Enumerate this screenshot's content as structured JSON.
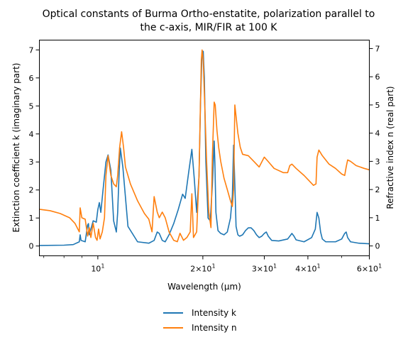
{
  "chart_data": {
    "type": "line",
    "title": "Optical constants of Burma Ortho-enstatite, polarization parallel to the c-axis, MIR/FIR at 100 K",
    "title_lines": [
      "Optical constants of Burma Ortho-enstatite, polarization parallel to",
      "the c-axis, MIR/FIR at 100 K"
    ],
    "xlabel": "Wavelength (μm)",
    "ylabel_left": "Extinction coefficient k (imaginary part)",
    "ylabel_right": "Refractive index n (real part)",
    "xscale": "log",
    "xlim": [
      6.8,
      60
    ],
    "ylim_left": [
      -0.35,
      7.35
    ],
    "ylim_right": [
      -0.35,
      7.3
    ],
    "x_major_ticks": [
      {
        "v": 10,
        "base": "10",
        "exp": "1"
      },
      {
        "v": 20,
        "base": "2×10",
        "exp": "1"
      },
      {
        "v": 30,
        "base": "3×10",
        "exp": "1"
      },
      {
        "v": 40,
        "base": "4×10",
        "exp": "1"
      },
      {
        "v": 60,
        "base": "6×10",
        "exp": "1"
      }
    ],
    "x_minor_ticks": [
      7,
      8,
      9,
      50
    ],
    "y_left_ticks": [
      "0",
      "1",
      "2",
      "3",
      "4",
      "5",
      "6",
      "7"
    ],
    "y_right_ticks": [
      "0",
      "1",
      "2",
      "3",
      "4",
      "5",
      "6",
      "7"
    ],
    "grid": false,
    "legend_position": "bottom-center",
    "series": [
      {
        "name": "Intensity k",
        "axis": "left",
        "color": "#1f77b4",
        "x": [
          6.8,
          8.0,
          8.5,
          8.85,
          8.9,
          8.95,
          9.2,
          9.35,
          9.4,
          9.45,
          9.6,
          9.7,
          9.9,
          10.0,
          10.1,
          10.2,
          10.35,
          10.45,
          10.55,
          10.7,
          10.9,
          11.1,
          11.3,
          11.4,
          11.5,
          11.6,
          11.8,
          12.2,
          13.0,
          14.0,
          14.5,
          14.8,
          15.0,
          15.3,
          15.6,
          16.0,
          16.5,
          17.0,
          17.5,
          17.8,
          18.2,
          18.6,
          18.9,
          19.2,
          19.5,
          19.7,
          19.9,
          20.05,
          20.2,
          20.4,
          20.7,
          21.0,
          21.3,
          21.55,
          21.65,
          21.8,
          22.1,
          22.5,
          23.0,
          23.5,
          24.0,
          24.3,
          24.5,
          24.7,
          24.9,
          25.2,
          25.5,
          26.0,
          26.5,
          27.0,
          27.5,
          28.0,
          28.5,
          29.0,
          29.5,
          30.0,
          30.4,
          30.8,
          31.5,
          33.0,
          35.0,
          35.5,
          36.0,
          36.5,
          37.0,
          39.0,
          41.0,
          42.0,
          42.5,
          43.0,
          43.5,
          44.0,
          45.0,
          48.0,
          50.0,
          51.0,
          51.5,
          52.0,
          53.0,
          56.0,
          60.0
        ],
        "y": [
          0.02,
          0.03,
          0.05,
          0.15,
          0.4,
          0.2,
          0.15,
          0.75,
          0.8,
          0.4,
          0.7,
          0.9,
          0.85,
          1.3,
          1.55,
          1.2,
          2.0,
          2.5,
          3.0,
          3.25,
          2.7,
          0.9,
          0.5,
          1.2,
          2.5,
          3.5,
          2.8,
          0.7,
          0.15,
          0.1,
          0.2,
          0.5,
          0.45,
          0.2,
          0.15,
          0.4,
          0.8,
          1.3,
          1.85,
          1.7,
          2.6,
          3.45,
          2.4,
          1.2,
          2.5,
          5.2,
          6.95,
          6.95,
          6.0,
          3.0,
          1.0,
          0.9,
          2.2,
          3.75,
          3.0,
          1.2,
          0.55,
          0.45,
          0.4,
          0.5,
          1.0,
          1.8,
          3.6,
          2.2,
          0.7,
          0.4,
          0.35,
          0.4,
          0.55,
          0.65,
          0.65,
          0.55,
          0.4,
          0.3,
          0.35,
          0.45,
          0.5,
          0.35,
          0.2,
          0.18,
          0.25,
          0.35,
          0.45,
          0.35,
          0.22,
          0.15,
          0.3,
          0.6,
          1.2,
          1.0,
          0.5,
          0.25,
          0.15,
          0.15,
          0.25,
          0.45,
          0.5,
          0.3,
          0.15,
          0.1,
          0.08
        ]
      },
      {
        "name": "Intensity n",
        "axis": "right",
        "color": "#ff7f0e",
        "x": [
          6.8,
          7.3,
          7.8,
          8.3,
          8.6,
          8.85,
          8.9,
          9.0,
          9.2,
          9.35,
          9.45,
          9.55,
          9.7,
          9.85,
          9.95,
          10.05,
          10.15,
          10.3,
          10.45,
          10.55,
          10.7,
          10.9,
          11.1,
          11.3,
          11.4,
          11.55,
          11.7,
          11.85,
          12.0,
          12.4,
          13.0,
          13.6,
          14.0,
          14.3,
          14.5,
          14.8,
          15.0,
          15.3,
          15.6,
          16.0,
          16.5,
          16.9,
          17.2,
          17.6,
          18.0,
          18.4,
          18.6,
          18.8,
          19.2,
          19.5,
          19.8,
          19.9,
          20.05,
          20.25,
          20.5,
          20.8,
          21.1,
          21.3,
          21.55,
          21.7,
          21.95,
          22.2,
          22.5,
          23.0,
          23.5,
          24.0,
          24.3,
          24.5,
          24.7,
          24.9,
          25.2,
          25.6,
          26.0,
          27.0,
          28.0,
          29.0,
          30.0,
          30.5,
          31.0,
          32.0,
          34.0,
          35.0,
          35.5,
          36.0,
          37.0,
          39.0,
          41.5,
          42.2,
          42.5,
          43.0,
          44.0,
          46.0,
          48.0,
          50.0,
          51.0,
          51.5,
          52.0,
          53.0,
          55.0,
          58.0,
          60.0
        ],
        "y": [
          1.3,
          1.25,
          1.15,
          1.0,
          0.8,
          0.5,
          1.35,
          1.0,
          0.95,
          0.35,
          0.65,
          0.3,
          0.8,
          0.3,
          0.2,
          0.6,
          0.25,
          0.5,
          1.0,
          2.5,
          3.2,
          2.5,
          2.2,
          2.1,
          2.5,
          3.5,
          4.05,
          3.5,
          2.8,
          2.2,
          1.6,
          1.15,
          0.95,
          0.5,
          1.75,
          1.2,
          1.0,
          1.2,
          1.0,
          0.5,
          0.2,
          0.15,
          0.45,
          0.2,
          0.3,
          0.5,
          1.85,
          0.3,
          0.5,
          2.5,
          6.6,
          6.95,
          6.6,
          5.0,
          3.0,
          1.2,
          0.65,
          3.2,
          5.1,
          5.0,
          4.1,
          3.5,
          3.0,
          2.4,
          2.0,
          1.6,
          1.4,
          2.0,
          5.0,
          4.6,
          4.0,
          3.5,
          3.25,
          3.2,
          3.0,
          2.8,
          3.15,
          3.05,
          2.95,
          2.75,
          2.6,
          2.6,
          2.85,
          2.9,
          2.75,
          2.5,
          2.15,
          2.2,
          3.15,
          3.4,
          3.2,
          2.9,
          2.75,
          2.55,
          2.5,
          2.8,
          3.05,
          3.0,
          2.85,
          2.75,
          2.7
        ]
      }
    ]
  }
}
